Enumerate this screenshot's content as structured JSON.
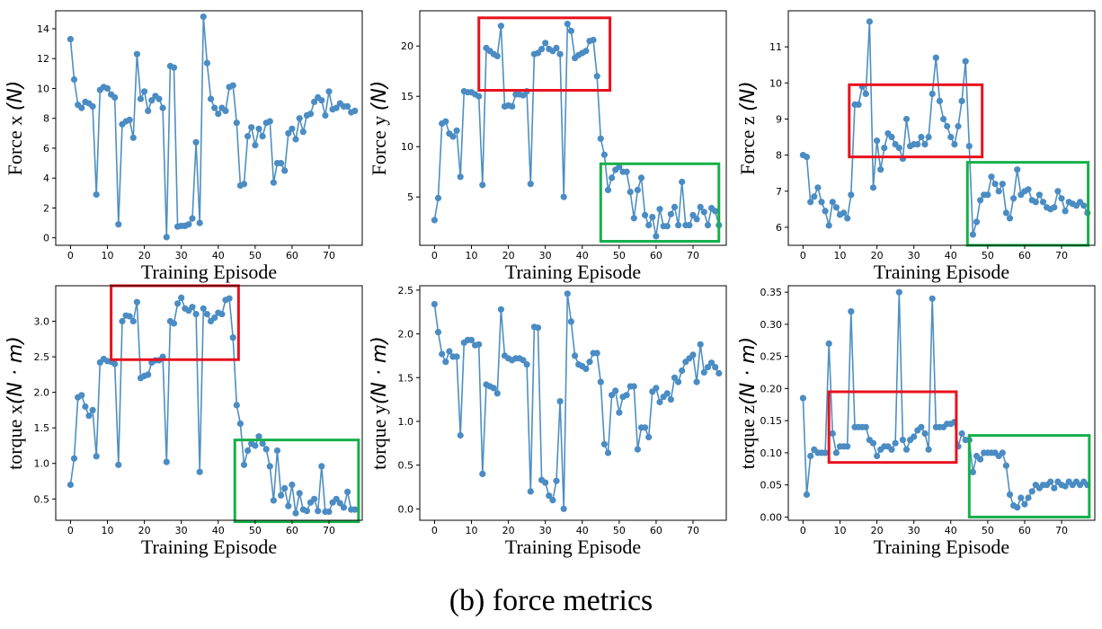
{
  "caption": "(b)  force metrics",
  "colors": {
    "series": "#4f8fc0",
    "marker": "#4a8cc3",
    "red_box": "#e8121e",
    "green_box": "#16b04a",
    "axis": "#000000"
  },
  "chart_data": [
    {
      "type": "line",
      "title": "",
      "xlabel": "Training Episode",
      "ylabel": "Force x (N)",
      "ylabel_text": "Force x ",
      "ylabel_unit": "(N)",
      "xlim": [
        -4,
        79
      ],
      "ylim": [
        -0.5,
        15.2
      ],
      "xticks": [
        0,
        10,
        20,
        30,
        40,
        50,
        60,
        70
      ],
      "yticks": [
        0,
        2,
        4,
        6,
        8,
        10,
        12,
        14
      ],
      "ytick_labels": [
        "0",
        "2",
        "4",
        "6",
        "8",
        "10",
        "12",
        "14"
      ],
      "grid": false,
      "x": [
        0,
        1,
        2,
        3,
        4,
        5,
        6,
        7,
        8,
        9,
        10,
        11,
        12,
        13,
        14,
        15,
        16,
        17,
        18,
        19,
        20,
        21,
        22,
        23,
        24,
        25,
        26,
        27,
        28,
        29,
        30,
        31,
        32,
        33,
        34,
        35,
        36,
        37,
        38,
        39,
        40,
        41,
        42,
        43,
        44,
        45,
        46,
        47,
        48,
        49,
        50,
        51,
        52,
        53,
        54,
        55,
        56,
        57,
        58,
        59,
        60,
        61,
        62,
        63,
        64,
        65,
        66,
        67,
        68,
        69,
        70,
        71,
        72,
        73,
        74,
        75,
        76,
        77
      ],
      "values": [
        13.3,
        10.6,
        8.9,
        8.7,
        9.1,
        9.0,
        8.8,
        2.9,
        9.9,
        10.1,
        10.0,
        9.6,
        9.4,
        0.9,
        7.6,
        7.8,
        7.9,
        6.7,
        12.3,
        9.3,
        9.8,
        8.5,
        9.2,
        9.5,
        9.3,
        8.7,
        0.05,
        11.5,
        11.4,
        0.75,
        0.8,
        0.8,
        0.9,
        1.3,
        6.4,
        1.0,
        14.8,
        11.7,
        9.3,
        8.7,
        8.3,
        8.7,
        8.5,
        10.1,
        10.2,
        7.7,
        3.5,
        3.6,
        6.8,
        7.4,
        6.2,
        7.3,
        6.8,
        7.7,
        7.8,
        3.7,
        5.0,
        5.0,
        4.5,
        7.0,
        7.3,
        6.6,
        8.0,
        7.1,
        8.2,
        8.3,
        9.1,
        9.4,
        9.2,
        8.2,
        9.8,
        8.6,
        8.7,
        9.0,
        8.8,
        8.8,
        8.4,
        8.5
      ],
      "boxes": []
    },
    {
      "type": "line",
      "title": "",
      "xlabel": "Training Episode",
      "ylabel": "Force y (N)",
      "ylabel_text": "Force y ",
      "ylabel_unit": "(N)",
      "xlim": [
        -4,
        79
      ],
      "ylim": [
        0.2,
        23.5
      ],
      "xticks": [
        0,
        10,
        20,
        30,
        40,
        50,
        60,
        70
      ],
      "yticks": [
        5,
        10,
        15,
        20
      ],
      "ytick_labels": [
        "5",
        "10",
        "15",
        "20"
      ],
      "grid": false,
      "x": [
        0,
        1,
        2,
        3,
        4,
        5,
        6,
        7,
        8,
        9,
        10,
        11,
        12,
        13,
        14,
        15,
        16,
        17,
        18,
        19,
        20,
        21,
        22,
        23,
        24,
        25,
        26,
        27,
        28,
        29,
        30,
        31,
        32,
        33,
        34,
        35,
        36,
        37,
        38,
        39,
        40,
        41,
        42,
        43,
        44,
        45,
        46,
        47,
        48,
        49,
        50,
        51,
        52,
        53,
        54,
        55,
        56,
        57,
        58,
        59,
        60,
        61,
        62,
        63,
        64,
        65,
        66,
        67,
        68,
        69,
        70,
        71,
        72,
        73,
        74,
        75,
        76,
        77
      ],
      "values": [
        2.7,
        4.9,
        12.3,
        12.5,
        11.3,
        11.0,
        11.6,
        7.0,
        15.5,
        15.4,
        15.4,
        15.2,
        15.0,
        6.2,
        19.8,
        19.5,
        19.2,
        19.0,
        22.0,
        14.0,
        14.1,
        14.0,
        15.2,
        15.2,
        15.1,
        15.5,
        6.3,
        19.2,
        19.3,
        19.7,
        20.3,
        19.7,
        19.5,
        19.8,
        19.2,
        5.0,
        22.2,
        21.5,
        18.8,
        19.1,
        19.3,
        19.5,
        20.5,
        20.6,
        17.0,
        10.8,
        9.2,
        5.7,
        6.9,
        7.7,
        8.0,
        7.5,
        7.5,
        5.5,
        2.9,
        5.7,
        6.9,
        3.2,
        2.2,
        3.0,
        1.1,
        3.8,
        2.1,
        2.1,
        3.3,
        4.0,
        2.2,
        6.5,
        2.2,
        2.2,
        3.2,
        2.8,
        4.0,
        3.5,
        2.2,
        3.9,
        3.6,
        2.2
      ],
      "boxes": [
        {
          "color": "red",
          "x0": 12,
          "x1": 47.5,
          "y0": 15.6,
          "y1": 22.8
        },
        {
          "color": "green",
          "x0": 45,
          "x1": 77,
          "y0": 0.6,
          "y1": 8.3
        }
      ]
    },
    {
      "type": "line",
      "title": "",
      "xlabel": "Training Episode",
      "ylabel": "Force z (N)",
      "ylabel_text": "Force z ",
      "ylabel_unit": "(N)",
      "xlim": [
        -4,
        79
      ],
      "ylim": [
        5.5,
        12.0
      ],
      "xticks": [
        0,
        10,
        20,
        30,
        40,
        50,
        60,
        70
      ],
      "yticks": [
        6,
        7,
        8,
        9,
        10,
        11
      ],
      "ytick_labels": [
        "6",
        "7",
        "8",
        "9",
        "10",
        "11"
      ],
      "grid": false,
      "x": [
        0,
        1,
        2,
        3,
        4,
        5,
        6,
        7,
        8,
        9,
        10,
        11,
        12,
        13,
        14,
        15,
        16,
        17,
        18,
        19,
        20,
        21,
        22,
        23,
        24,
        25,
        26,
        27,
        28,
        29,
        30,
        31,
        32,
        33,
        34,
        35,
        36,
        37,
        38,
        39,
        40,
        41,
        42,
        43,
        44,
        45,
        46,
        47,
        48,
        49,
        50,
        51,
        52,
        53,
        54,
        55,
        56,
        57,
        58,
        59,
        60,
        61,
        62,
        63,
        64,
        65,
        66,
        67,
        68,
        69,
        70,
        71,
        72,
        73,
        74,
        75,
        76,
        77
      ],
      "values": [
        8.0,
        7.95,
        6.7,
        6.85,
        7.1,
        6.7,
        6.45,
        6.05,
        6.7,
        6.55,
        6.35,
        6.4,
        6.25,
        6.9,
        9.4,
        9.4,
        9.9,
        9.7,
        11.7,
        7.1,
        8.4,
        7.6,
        8.2,
        8.6,
        8.5,
        8.3,
        8.2,
        7.9,
        9.0,
        8.25,
        8.3,
        8.3,
        8.5,
        8.3,
        8.5,
        9.7,
        10.7,
        9.5,
        9.0,
        8.8,
        8.5,
        8.3,
        8.8,
        9.5,
        10.6,
        8.25,
        5.8,
        6.15,
        6.75,
        6.9,
        6.9,
        7.4,
        7.2,
        7.0,
        7.2,
        6.4,
        6.25,
        6.8,
        7.6,
        6.9,
        7.0,
        7.05,
        6.75,
        6.7,
        6.9,
        6.7,
        6.55,
        6.5,
        6.55,
        7.0,
        6.8,
        6.45,
        6.7,
        6.65,
        6.6,
        6.7,
        6.6,
        6.4
      ],
      "boxes": [
        {
          "color": "red",
          "x0": 12.5,
          "x1": 48.5,
          "y0": 7.95,
          "y1": 9.95
        },
        {
          "color": "green",
          "x0": 44.5,
          "x1": 77.2,
          "y0": 5.5,
          "y1": 7.8
        }
      ]
    },
    {
      "type": "line",
      "title": "",
      "xlabel": "Training Episode",
      "ylabel": "torque x (N · m)",
      "ylabel_text": "torque x",
      "ylabel_unit": "(N · m)",
      "xlim": [
        -4,
        79
      ],
      "ylim": [
        0.2,
        3.5
      ],
      "xticks": [
        0,
        10,
        20,
        30,
        40,
        50,
        60,
        70
      ],
      "yticks": [
        0.5,
        1.0,
        1.5,
        2.0,
        2.5,
        3.0
      ],
      "ytick_labels": [
        "0.5",
        "1.0",
        "1.5",
        "2.0",
        "2.5",
        "3.0"
      ],
      "grid": false,
      "x": [
        0,
        1,
        2,
        3,
        4,
        5,
        6,
        7,
        8,
        9,
        10,
        11,
        12,
        13,
        14,
        15,
        16,
        17,
        18,
        19,
        20,
        21,
        22,
        23,
        24,
        25,
        26,
        27,
        28,
        29,
        30,
        31,
        32,
        33,
        34,
        35,
        36,
        37,
        38,
        39,
        40,
        41,
        42,
        43,
        44,
        45,
        46,
        47,
        48,
        49,
        50,
        51,
        52,
        53,
        54,
        55,
        56,
        57,
        58,
        59,
        60,
        61,
        62,
        63,
        64,
        65,
        66,
        67,
        68,
        69,
        70,
        71,
        72,
        73,
        74,
        75,
        76,
        77
      ],
      "values": [
        0.7,
        1.07,
        1.93,
        1.96,
        1.8,
        1.67,
        1.75,
        1.1,
        2.42,
        2.47,
        2.44,
        2.43,
        2.4,
        0.98,
        3.0,
        3.08,
        3.07,
        3.0,
        3.27,
        2.2,
        2.23,
        2.25,
        2.42,
        2.45,
        2.45,
        2.5,
        1.02,
        3.0,
        2.97,
        3.25,
        3.33,
        3.18,
        3.15,
        3.2,
        3.1,
        0.88,
        3.18,
        3.1,
        3.0,
        3.05,
        3.12,
        3.1,
        3.3,
        3.32,
        2.77,
        1.82,
        1.56,
        0.98,
        1.18,
        1.28,
        1.25,
        1.38,
        1.28,
        1.2,
        0.96,
        0.48,
        1.18,
        0.55,
        0.65,
        0.4,
        0.7,
        0.3,
        0.58,
        0.35,
        0.33,
        0.45,
        0.5,
        0.33,
        0.96,
        0.32,
        0.32,
        0.45,
        0.5,
        0.44,
        0.38,
        0.6,
        0.35,
        0.35
      ],
      "boxes": [
        {
          "color": "red",
          "x0": 11,
          "x1": 45.5,
          "y0": 2.46,
          "y1": 3.5
        },
        {
          "color": "green",
          "x0": 44.5,
          "x1": 78,
          "y0": 0.18,
          "y1": 1.33
        }
      ]
    },
    {
      "type": "line",
      "title": "",
      "xlabel": "Training Episode",
      "ylabel": "torque y (N · m)",
      "ylabel_text": "torque y",
      "ylabel_unit": "(N · m)",
      "xlim": [
        -4,
        79
      ],
      "ylim": [
        -0.13,
        2.55
      ],
      "xticks": [
        0,
        10,
        20,
        30,
        40,
        50,
        60,
        70
      ],
      "yticks": [
        0.0,
        0.5,
        1.0,
        1.5,
        2.0,
        2.5
      ],
      "ytick_labels": [
        "0.0",
        "0.5",
        "1.0",
        "1.5",
        "2.0",
        "2.5"
      ],
      "grid": false,
      "x": [
        0,
        1,
        2,
        3,
        4,
        5,
        6,
        7,
        8,
        9,
        10,
        11,
        12,
        13,
        14,
        15,
        16,
        17,
        18,
        19,
        20,
        21,
        22,
        23,
        24,
        25,
        26,
        27,
        28,
        29,
        30,
        31,
        32,
        33,
        34,
        35,
        36,
        37,
        38,
        39,
        40,
        41,
        42,
        43,
        44,
        45,
        46,
        47,
        48,
        49,
        50,
        51,
        52,
        53,
        54,
        55,
        56,
        57,
        58,
        59,
        60,
        61,
        62,
        63,
        64,
        65,
        66,
        67,
        68,
        69,
        70,
        71,
        72,
        73,
        74,
        75,
        76,
        77
      ],
      "values": [
        2.34,
        2.02,
        1.77,
        1.68,
        1.8,
        1.74,
        1.74,
        0.84,
        1.9,
        1.93,
        1.93,
        1.87,
        1.88,
        0.4,
        1.42,
        1.4,
        1.38,
        1.32,
        2.28,
        1.75,
        1.72,
        1.7,
        1.72,
        1.72,
        1.7,
        1.65,
        0.2,
        2.08,
        2.07,
        0.33,
        0.3,
        0.15,
        0.1,
        0.32,
        1.23,
        0.0,
        2.46,
        2.14,
        1.75,
        1.65,
        1.63,
        1.6,
        1.68,
        1.78,
        1.78,
        1.45,
        0.74,
        0.64,
        1.3,
        1.35,
        1.1,
        1.28,
        1.3,
        1.4,
        1.4,
        0.68,
        0.93,
        0.93,
        0.82,
        1.34,
        1.38,
        1.22,
        1.28,
        1.32,
        1.25,
        1.5,
        1.45,
        1.58,
        1.68,
        1.72,
        1.76,
        1.45,
        1.88,
        1.56,
        1.62,
        1.67,
        1.62,
        1.55
      ],
      "boxes": []
    },
    {
      "type": "line",
      "title": "",
      "xlabel": "Training Episode",
      "ylabel": "torque z (N · m)",
      "ylabel_text": "torque z",
      "ylabel_unit": "(N · m)",
      "xlim": [
        -4,
        79
      ],
      "ylim": [
        -0.005,
        0.36
      ],
      "xticks": [
        0,
        10,
        20,
        30,
        40,
        50,
        60,
        70
      ],
      "yticks": [
        0.0,
        0.05,
        0.1,
        0.15,
        0.2,
        0.25,
        0.3,
        0.35
      ],
      "ytick_labels": [
        "0.00",
        "0.05",
        "0.10",
        "0.15",
        "0.20",
        "0.25",
        "0.30",
        "0.35"
      ],
      "grid": false,
      "x": [
        0,
        1,
        2,
        3,
        4,
        5,
        6,
        7,
        8,
        9,
        10,
        11,
        12,
        13,
        14,
        15,
        16,
        17,
        18,
        19,
        20,
        21,
        22,
        23,
        24,
        25,
        26,
        27,
        28,
        29,
        30,
        31,
        32,
        33,
        34,
        35,
        36,
        37,
        38,
        39,
        40,
        41,
        42,
        43,
        44,
        45,
        46,
        47,
        48,
        49,
        50,
        51,
        52,
        53,
        54,
        55,
        56,
        57,
        58,
        59,
        60,
        61,
        62,
        63,
        64,
        65,
        66,
        67,
        68,
        69,
        70,
        71,
        72,
        73,
        74,
        75,
        76,
        77
      ],
      "values": [
        0.185,
        0.035,
        0.095,
        0.105,
        0.1,
        0.1,
        0.1,
        0.27,
        0.13,
        0.1,
        0.11,
        0.11,
        0.11,
        0.32,
        0.14,
        0.14,
        0.14,
        0.14,
        0.12,
        0.115,
        0.095,
        0.105,
        0.11,
        0.11,
        0.105,
        0.115,
        0.35,
        0.12,
        0.105,
        0.12,
        0.125,
        0.135,
        0.14,
        0.13,
        0.105,
        0.34,
        0.14,
        0.14,
        0.14,
        0.145,
        0.145,
        0.148,
        0.11,
        0.13,
        0.12,
        0.12,
        0.07,
        0.095,
        0.09,
        0.1,
        0.1,
        0.1,
        0.1,
        0.095,
        0.1,
        0.08,
        0.035,
        0.018,
        0.015,
        0.03,
        0.02,
        0.03,
        0.04,
        0.05,
        0.045,
        0.05,
        0.05,
        0.055,
        0.045,
        0.055,
        0.05,
        0.048,
        0.055,
        0.05,
        0.055,
        0.05,
        0.055,
        0.05
      ],
      "boxes": [
        {
          "color": "red",
          "x0": 7,
          "x1": 41.5,
          "y0": 0.085,
          "y1": 0.195
        },
        {
          "color": "green",
          "x0": 45,
          "x1": 77.5,
          "y0": 0.0,
          "y1": 0.127
        }
      ]
    }
  ]
}
